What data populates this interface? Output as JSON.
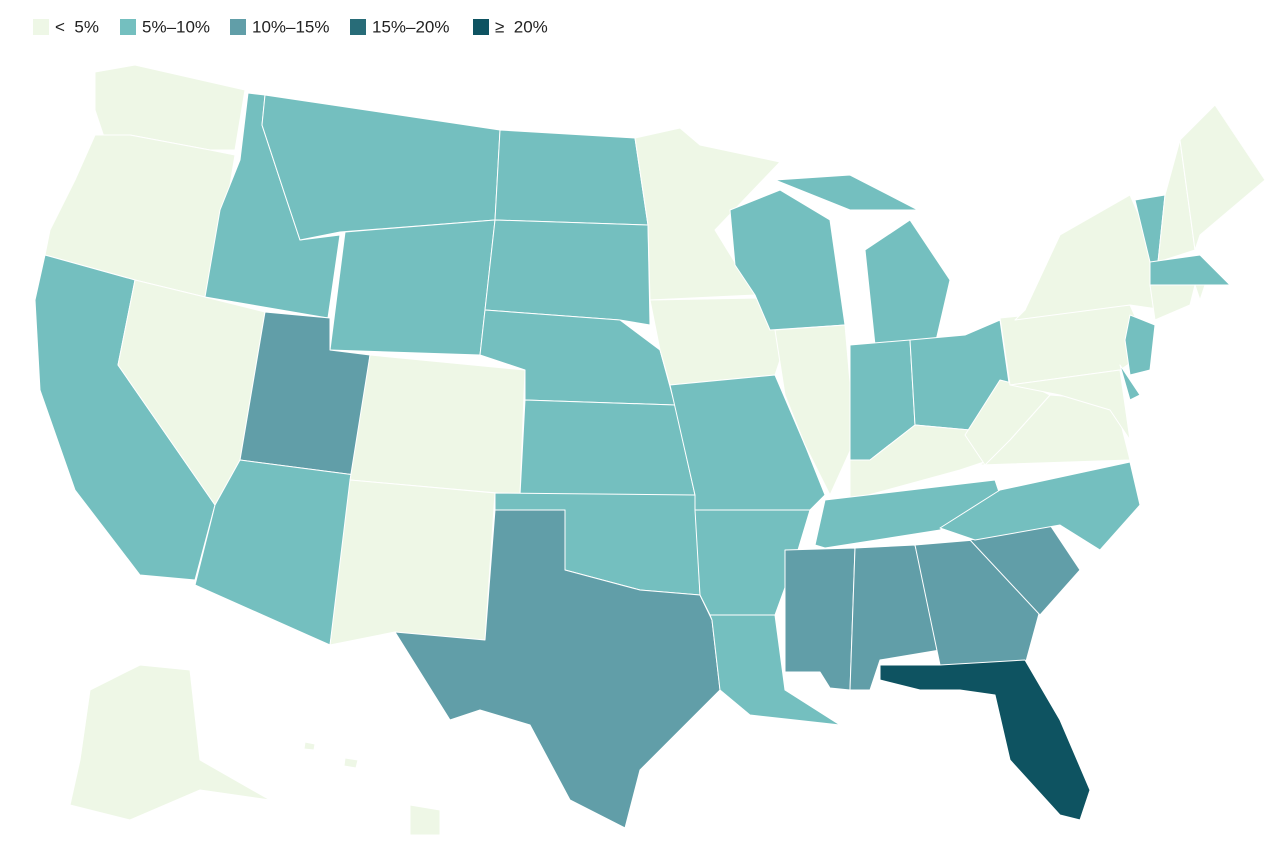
{
  "legend": [
    {
      "label": "<  5%",
      "color": "#eef7e6"
    },
    {
      "label": "5%–10%",
      "color": "#74bfbf"
    },
    {
      "label": "10%–15%",
      "color": "#619ea8"
    },
    {
      "label": "15%–20%",
      "color": "#286c78"
    },
    {
      "label": "≥  20%",
      "color": "#0e5361"
    }
  ],
  "regions": [
    0,
    0,
    1,
    0,
    1,
    1,
    1,
    2,
    1,
    0,
    0,
    1,
    1,
    1,
    1,
    1,
    2,
    0,
    0,
    1,
    1,
    1,
    1,
    0,
    1,
    1,
    1,
    0,
    1,
    2,
    2,
    2,
    4,
    2,
    1,
    0,
    0,
    0,
    0,
    1,
    0,
    1,
    1,
    0,
    0,
    1,
    0,
    0,
    0,
    0
  ]
}
